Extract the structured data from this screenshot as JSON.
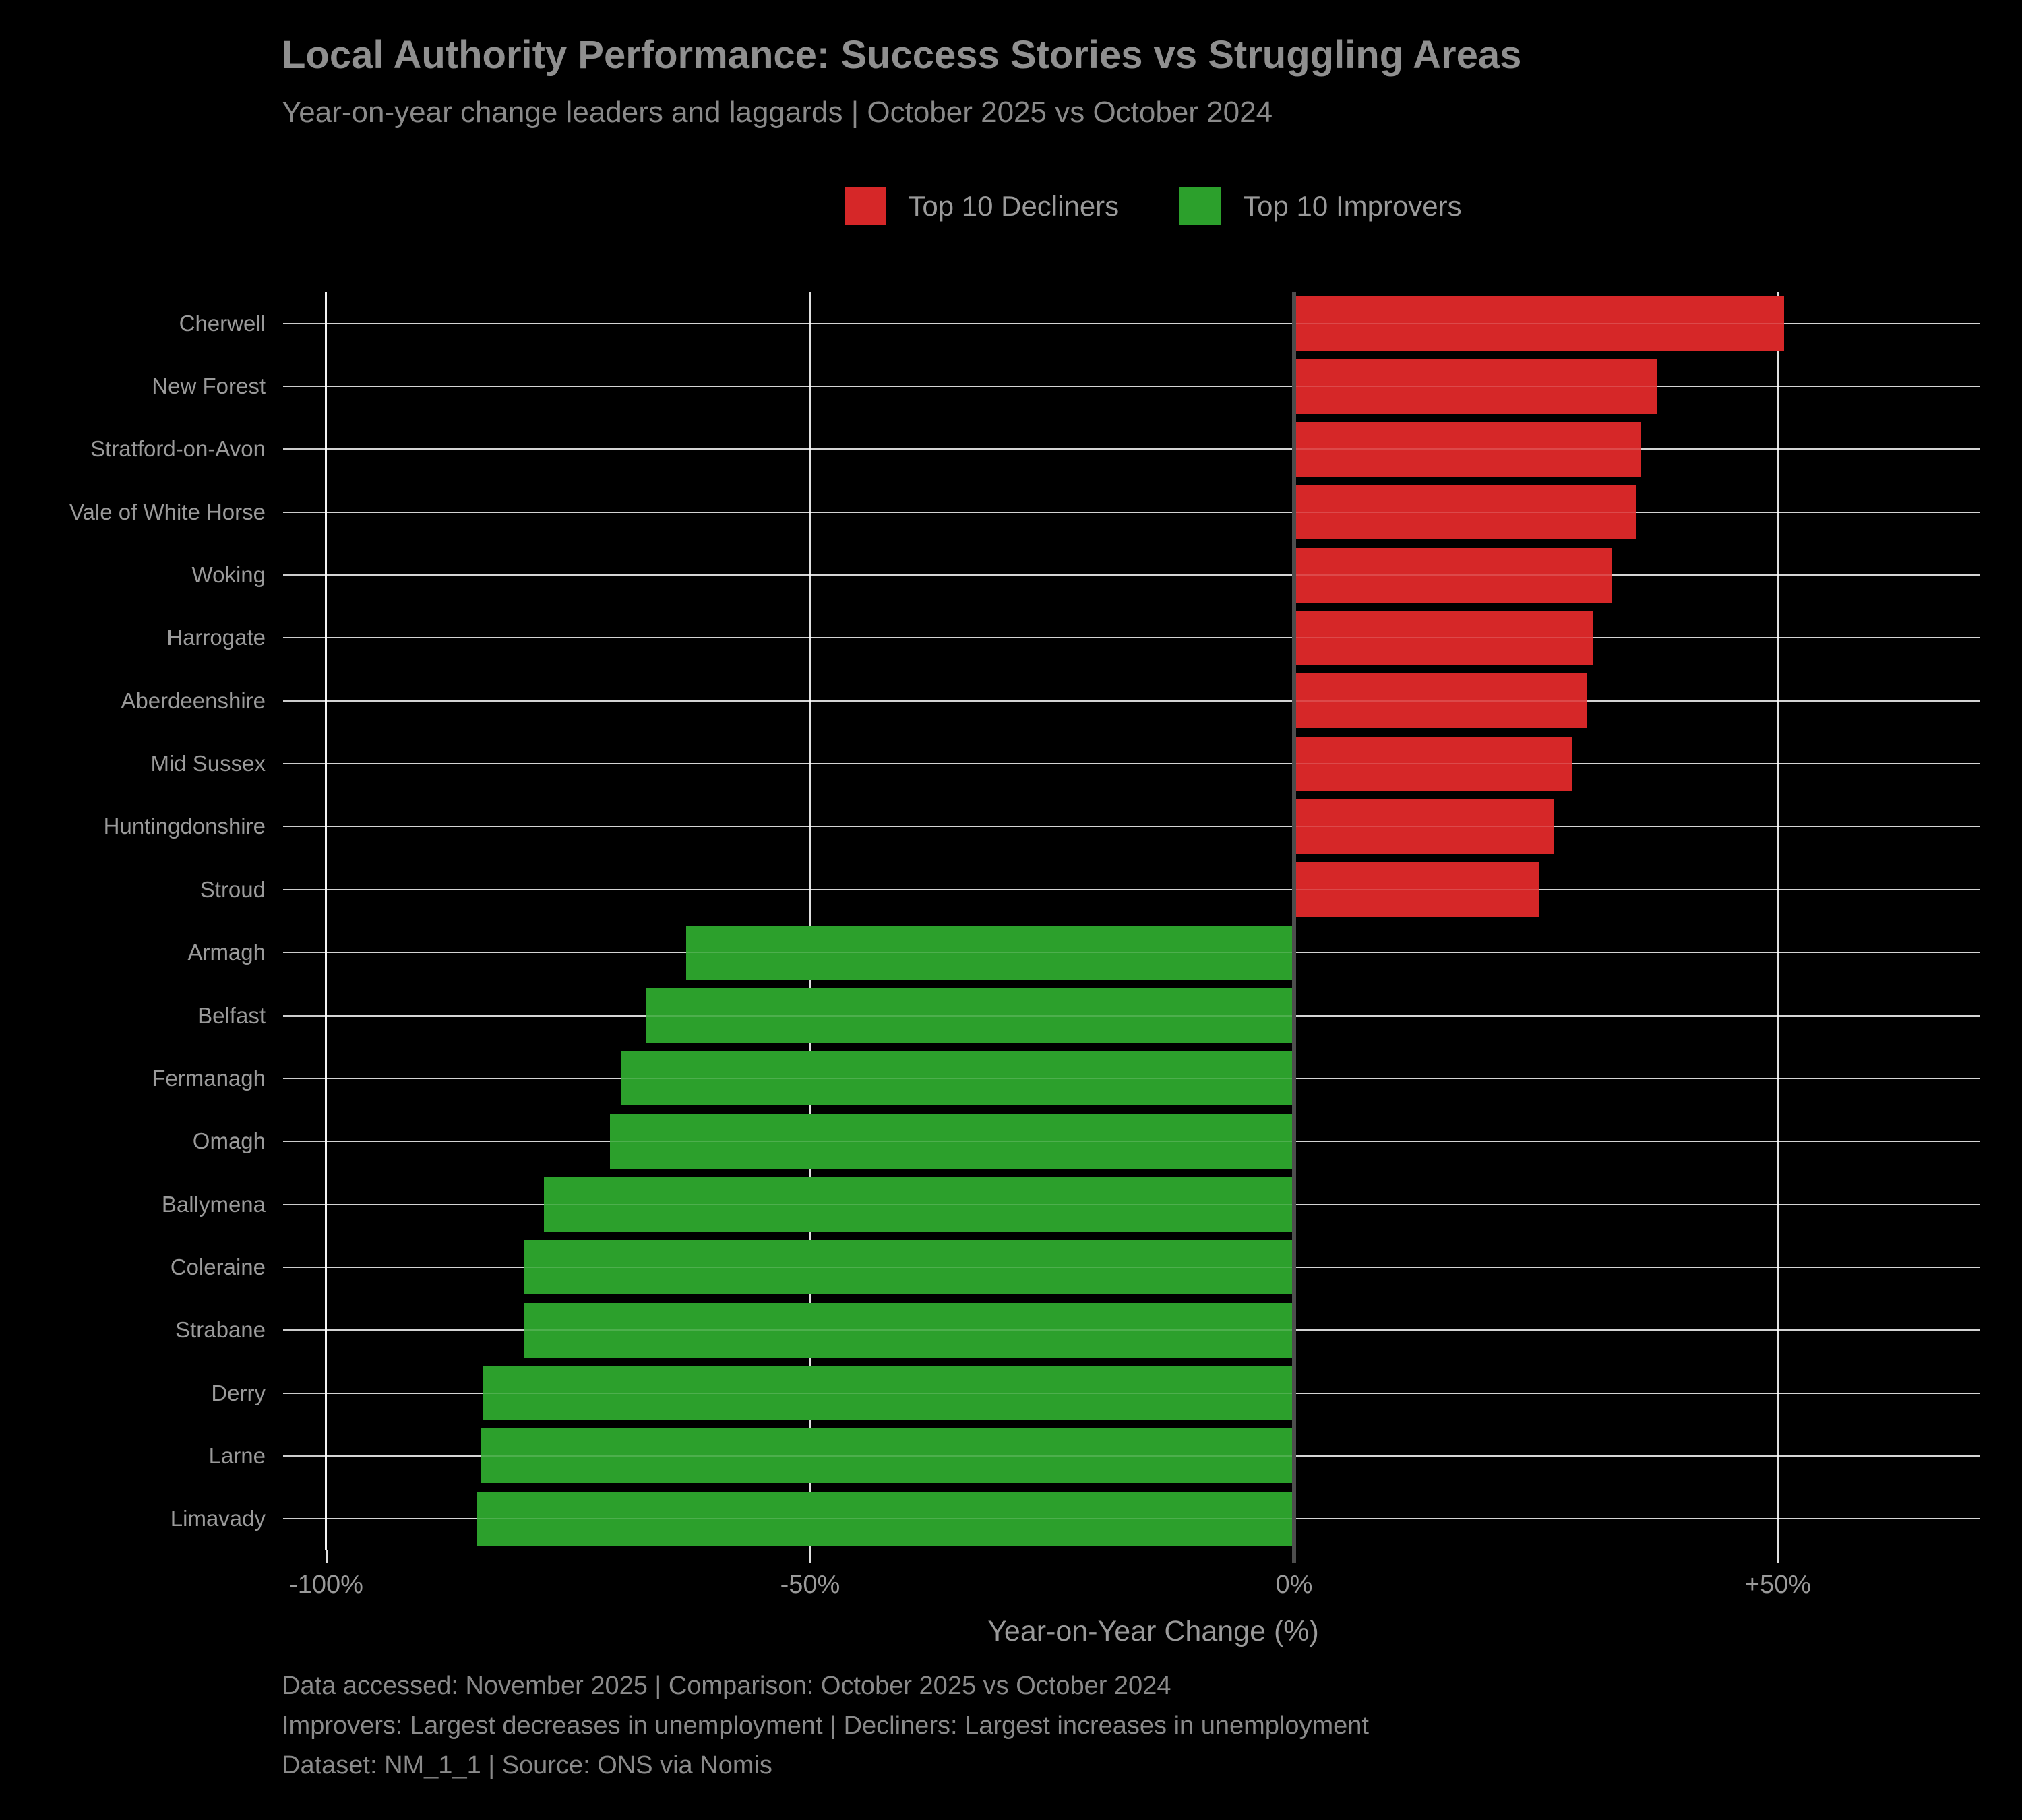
{
  "title": "Local Authority Performance: Success Stories vs Struggling Areas",
  "subtitle": "Year-on-year change leaders and laggards | October 2025 vs October 2024",
  "legend": {
    "items": [
      {
        "label": "Top 10 Decliners",
        "color": "#d62728"
      },
      {
        "label": "Top 10 Improvers",
        "color": "#2ca02c"
      }
    ]
  },
  "footer": {
    "line1": "Data accessed: November 2025 | Comparison: October 2025 vs October 2024",
    "line2": "Improvers: Largest decreases in unemployment | Decliners: Largest increases in unemployment",
    "line3": "Dataset: NM_1_1 | Source: ONS via Nomis"
  },
  "colors": {
    "background": "#000000",
    "decliner": "#d62728",
    "improver": "#2ca02c",
    "grid": "#ffffff",
    "zero_line": "#4d4d4d",
    "text": "#9a9a9a"
  },
  "chart_data": {
    "type": "bar",
    "orientation": "horizontal",
    "title": "Local Authority Performance: Success Stories vs Struggling Areas",
    "subtitle": "Year-on-year change leaders and laggards | October 2025 vs October 2024",
    "xlabel": "Year-on-Year Change (%)",
    "ylabel": "",
    "xlim": [
      -100,
      70.9
    ],
    "grid": true,
    "legend_position": "top-center",
    "x_ticks": [
      {
        "label": "-100%",
        "value": -100
      },
      {
        "label": "-50%",
        "value": -50
      },
      {
        "label": "0%",
        "value": 0
      },
      {
        "label": "+50%",
        "value": 50
      }
    ],
    "series": [
      {
        "name": "Top 10 Decliners",
        "color": "#d62728"
      },
      {
        "name": "Top 10 Improvers",
        "color": "#2ca02c"
      }
    ],
    "bars": [
      {
        "category": "Cherwell",
        "value": 50.6,
        "series": "Top 10 Decliners",
        "color": "#d62728"
      },
      {
        "category": "New Forest",
        "value": 37.5,
        "series": "Top 10 Decliners",
        "color": "#d62728"
      },
      {
        "category": "Stratford-on-Avon",
        "value": 35.9,
        "series": "Top 10 Decliners",
        "color": "#d62728"
      },
      {
        "category": "Vale of White Horse",
        "value": 35.3,
        "series": "Top 10 Decliners",
        "color": "#d62728"
      },
      {
        "category": "Woking",
        "value": 32.9,
        "series": "Top 10 Decliners",
        "color": "#d62728"
      },
      {
        "category": "Harrogate",
        "value": 30.9,
        "series": "Top 10 Decliners",
        "color": "#d62728"
      },
      {
        "category": "Aberdeenshire",
        "value": 30.2,
        "series": "Top 10 Decliners",
        "color": "#d62728"
      },
      {
        "category": "Mid Sussex",
        "value": 28.7,
        "series": "Top 10 Decliners",
        "color": "#d62728"
      },
      {
        "category": "Huntingdonshire",
        "value": 26.8,
        "series": "Top 10 Decliners",
        "color": "#d62728"
      },
      {
        "category": "Stroud",
        "value": 25.3,
        "series": "Top 10 Decliners",
        "color": "#d62728"
      },
      {
        "category": "Armagh",
        "value": -62.8,
        "series": "Top 10 Improvers",
        "color": "#2ca02c"
      },
      {
        "category": "Belfast",
        "value": -66.9,
        "series": "Top 10 Improvers",
        "color": "#2ca02c"
      },
      {
        "category": "Fermanagh",
        "value": -69.6,
        "series": "Top 10 Improvers",
        "color": "#2ca02c"
      },
      {
        "category": "Omagh",
        "value": -70.7,
        "series": "Top 10 Improvers",
        "color": "#2ca02c"
      },
      {
        "category": "Ballymena",
        "value": -77.5,
        "series": "Top 10 Improvers",
        "color": "#2ca02c"
      },
      {
        "category": "Coleraine",
        "value": -79.5,
        "series": "Top 10 Improvers",
        "color": "#2ca02c"
      },
      {
        "category": "Strabane",
        "value": -79.6,
        "series": "Top 10 Improvers",
        "color": "#2ca02c"
      },
      {
        "category": "Derry",
        "value": -83.8,
        "series": "Top 10 Improvers",
        "color": "#2ca02c"
      },
      {
        "category": "Larne",
        "value": -84.0,
        "series": "Top 10 Improvers",
        "color": "#2ca02c"
      },
      {
        "category": "Limavady",
        "value": -84.5,
        "series": "Top 10 Improvers",
        "color": "#2ca02c"
      }
    ]
  }
}
